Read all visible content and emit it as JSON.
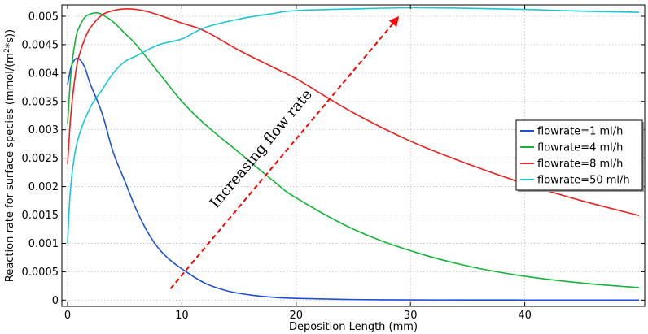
{
  "chart_data": {
    "type": "line",
    "xlabel": "Deposition Length (mm)",
    "ylabel_prefix": "Reaction rate for surface species (mmol/(m",
    "ylabel_sup": "2",
    "ylabel_suffix": "*s))",
    "xlim": [
      0,
      50
    ],
    "ylim": [
      0,
      0.0052
    ],
    "xticks": [
      0,
      10,
      20,
      30,
      40
    ],
    "xtick_labels": [
      "0",
      "10",
      "20",
      "30",
      "40"
    ],
    "yticks": [
      0,
      0.0005,
      0.001,
      0.0015,
      0.002,
      0.0025,
      0.003,
      0.0035,
      0.004,
      0.0045,
      0.005
    ],
    "ytick_labels": [
      "0",
      "0.0005",
      "0.001",
      "0.0015",
      "0.002",
      "0.0025",
      "0.003",
      "0.0035",
      "0.004",
      "0.0045",
      "0.005"
    ],
    "grid": true,
    "legend_position": "center-right",
    "annotation": {
      "text": "Increasing flow rate",
      "arrow_from": [
        9,
        0.0002
      ],
      "arrow_to": [
        29,
        0.005
      ],
      "color": "#ff0000"
    },
    "series": [
      {
        "name": "flowrate=1 ml/h",
        "color": "#1f4fd6",
        "x": [
          0,
          0.3,
          0.6,
          1,
          1.5,
          2,
          3,
          4,
          5,
          6,
          7,
          8,
          9,
          10,
          12,
          14,
          16,
          18,
          20,
          25,
          30,
          35,
          40,
          45,
          50
        ],
        "y": [
          0.0038,
          0.0041,
          0.00423,
          0.00425,
          0.0041,
          0.0038,
          0.0033,
          0.0026,
          0.0021,
          0.0016,
          0.0012,
          0.0009,
          0.0007,
          0.00055,
          0.0003,
          0.00016,
          9e-05,
          5e-05,
          3e-05,
          1e-05,
          4e-06,
          2e-06,
          1e-06,
          1e-06,
          1e-06
        ]
      },
      {
        "name": "flowrate=4 ml/h",
        "color": "#12b53a",
        "x": [
          0,
          0.3,
          0.7,
          1,
          1.5,
          2,
          2.5,
          3,
          4,
          5,
          6,
          8,
          10,
          12,
          15,
          18,
          20,
          25,
          30,
          35,
          40,
          45,
          50
        ],
        "y": [
          0.0031,
          0.004,
          0.0046,
          0.0048,
          0.00498,
          0.00504,
          0.00506,
          0.00503,
          0.0049,
          0.0047,
          0.0045,
          0.004,
          0.0035,
          0.0031,
          0.0026,
          0.0021,
          0.0018,
          0.00125,
          0.00087,
          0.0006,
          0.00042,
          0.0003,
          0.00022
        ]
      },
      {
        "name": "flowrate=8 ml/h",
        "color": "#ee1f1f",
        "x": [
          0,
          0.3,
          0.7,
          1,
          1.5,
          2,
          3,
          4,
          5,
          6,
          7,
          8,
          10,
          12,
          15,
          18,
          20,
          25,
          30,
          35,
          40,
          45,
          50
        ],
        "y": [
          0.0024,
          0.0033,
          0.004,
          0.0043,
          0.0046,
          0.0048,
          0.00502,
          0.0051,
          0.00513,
          0.00512,
          0.00508,
          0.00502,
          0.00488,
          0.00474,
          0.0044,
          0.0041,
          0.0039,
          0.0033,
          0.0028,
          0.0024,
          0.00205,
          0.00175,
          0.00149
        ]
      },
      {
        "name": "flowrate=50 ml/h",
        "color": "#19c9cf",
        "x": [
          0,
          0.2,
          0.5,
          1,
          2,
          3,
          4,
          5,
          6,
          8,
          10,
          12,
          15,
          18,
          20,
          25,
          30,
          35,
          40,
          45,
          50
        ],
        "y": [
          0.001,
          0.0018,
          0.0024,
          0.0029,
          0.0034,
          0.0037,
          0.004,
          0.0042,
          0.0043,
          0.0045,
          0.0046,
          0.0048,
          0.00495,
          0.00505,
          0.0051,
          0.00513,
          0.00515,
          0.00514,
          0.00512,
          0.00509,
          0.00507
        ]
      }
    ]
  }
}
